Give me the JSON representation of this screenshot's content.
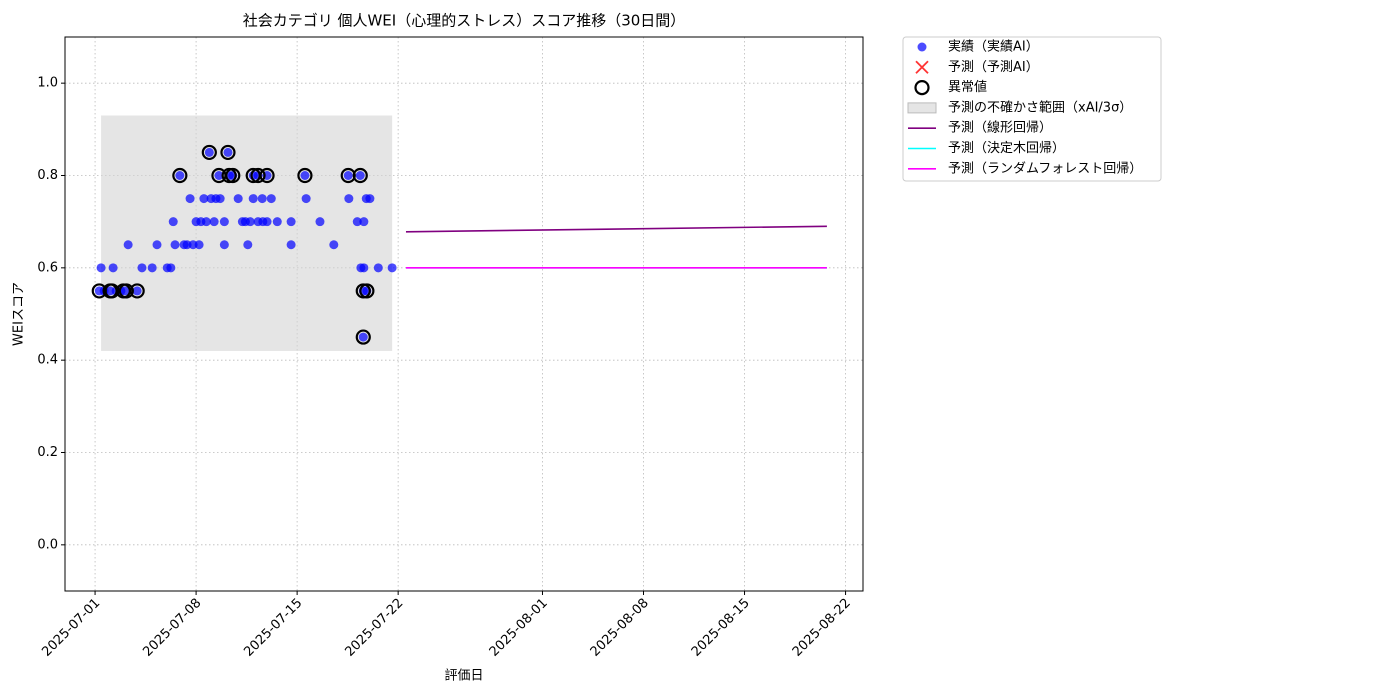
{
  "chart_data": {
    "type": "scatter",
    "title": "社会カテゴリ 個人WEI（心理的ストレス）スコア推移（30日間）",
    "xlabel": "評価日",
    "ylabel": "WEIスコア",
    "xlim": [
      "2025-06-28T22:00",
      "2025-08-23T05:00"
    ],
    "xticks": [
      "2025-07-01",
      "2025-07-08",
      "2025-07-15",
      "2025-07-22",
      "2025-08-01",
      "2025-08-08",
      "2025-08-15",
      "2025-08-22"
    ],
    "ylim": [
      -0.1,
      1.1
    ],
    "yticks": [
      {
        "value": 0,
        "label": "0.0"
      },
      0.2,
      0.4,
      0.6,
      0.8,
      {
        "value": 1,
        "label": "1.0"
      }
    ],
    "grid": true,
    "legend": "outside-upper-right",
    "series": [
      {
        "name": "実績（実績AI）",
        "kind": "scatter",
        "marker": "circle",
        "color": "#0000ff",
        "x": [
          "2025-07-01T07:00",
          "2025-07-01T10:00",
          "2025-07-01T15:00",
          "2025-07-02T01:00",
          "2025-07-02T06:00",
          "2025-07-02T11:00",
          "2025-07-02T19:00",
          "2025-07-03T02:00",
          "2025-07-03T07:00",
          "2025-07-03T22:00",
          "2025-07-04T06:00",
          "2025-07-04T23:00",
          "2025-07-05T07:00",
          "2025-07-06T00:00",
          "2025-07-06T06:00",
          "2025-07-06T10:00",
          "2025-07-06T13:00",
          "2025-07-06T21:00",
          "2025-07-07T04:00",
          "2025-07-07T09:00",
          "2025-07-07T14:00",
          "2025-07-07T19:00",
          "2025-07-08T00:00",
          "2025-07-08T05:00",
          "2025-07-08T08:00",
          "2025-07-08T13:00",
          "2025-07-08T17:00",
          "2025-07-08T22:00",
          "2025-07-09T01:00",
          "2025-07-09T06:00",
          "2025-07-09T09:00",
          "2025-07-09T14:00",
          "2025-07-09T16:00",
          "2025-07-09T23:00",
          "2025-07-09T23:00",
          "2025-07-10T05:00",
          "2025-07-10T07:00",
          "2025-07-10T13:00",
          "2025-07-10T22:00",
          "2025-07-11T05:00",
          "2025-07-11T10:00",
          "2025-07-11T14:00",
          "2025-07-11T18:00",
          "2025-07-11T23:00",
          "2025-07-11T23:00",
          "2025-07-12T07:00",
          "2025-07-12T07:00",
          "2025-07-12T14:00",
          "2025-07-12T15:00",
          "2025-07-12T22:00",
          "2025-07-12T22:00",
          "2025-07-13T05:00",
          "2025-07-13T15:00",
          "2025-07-14T14:00",
          "2025-07-14T14:00",
          "2025-07-15T13:00",
          "2025-07-15T15:00",
          "2025-07-16T14:00",
          "2025-07-17T13:00",
          "2025-07-18T13:00",
          "2025-07-18T14:00",
          "2025-07-19T04:00",
          "2025-07-19T09:00",
          "2025-07-19T10:00",
          "2025-07-19T14:00",
          "2025-07-19T14:00",
          "2025-07-19T15:00",
          "2025-07-19T15:00",
          "2025-07-19T19:00",
          "2025-07-19T20:00",
          "2025-07-20T01:00",
          "2025-07-20T15:00",
          "2025-07-21T14:00"
        ],
        "values": [
          0.55,
          0.6,
          0.55,
          0.55,
          0.6,
          0.55,
          0.55,
          0.55,
          0.65,
          0.55,
          0.6,
          0.6,
          0.65,
          0.6,
          0.6,
          0.7,
          0.65,
          0.8,
          0.65,
          0.65,
          0.75,
          0.65,
          0.7,
          0.65,
          0.7,
          0.75,
          0.7,
          0.85,
          0.75,
          0.7,
          0.75,
          0.8,
          0.75,
          0.65,
          0.7,
          0.85,
          0.8,
          0.8,
          0.75,
          0.7,
          0.7,
          0.65,
          0.7,
          0.8,
          0.75,
          0.7,
          0.8,
          0.75,
          0.7,
          0.7,
          0.8,
          0.75,
          0.7,
          0.7,
          0.65,
          0.8,
          0.75,
          0.7,
          0.65,
          0.8,
          0.75,
          0.7,
          0.8,
          0.6,
          0.55,
          0.45,
          0.7,
          0.6,
          0.75,
          0.55,
          0.75,
          0.6,
          0.6
        ]
      },
      {
        "name": "予測（予測AI）",
        "kind": "scatter",
        "marker": "x",
        "color": "#ff0000",
        "x": [],
        "values": []
      },
      {
        "name": "異常値",
        "kind": "scatter",
        "marker": "ring",
        "color": "#000000",
        "x": [
          "2025-07-01T07:00",
          "2025-07-02T01:00",
          "2025-07-02T04:00",
          "2025-07-02T23:00",
          "2025-07-03T04:00",
          "2025-07-03T22:00",
          "2025-07-06T21:00",
          "2025-07-08T22:00",
          "2025-07-09T14:00",
          "2025-07-10T05:00",
          "2025-07-10T07:00",
          "2025-07-10T13:00",
          "2025-07-11T23:00",
          "2025-07-12T07:00",
          "2025-07-12T22:00",
          "2025-07-15T13:00",
          "2025-07-18T13:00",
          "2025-07-19T09:00",
          "2025-07-19T14:00",
          "2025-07-19T20:00",
          "2025-07-19T14:00"
        ],
        "values": [
          0.55,
          0.55,
          0.55,
          0.55,
          0.55,
          0.55,
          0.8,
          0.85,
          0.8,
          0.85,
          0.8,
          0.8,
          0.8,
          0.8,
          0.8,
          0.8,
          0.8,
          0.8,
          0.55,
          0.55,
          0.45
        ]
      },
      {
        "name": "予測の不確かさ範囲（xAI/3σ）",
        "kind": "band",
        "color": "#d3d3d3",
        "x": [
          "2025-07-01T10:00",
          "2025-07-21T14:00"
        ],
        "values": [
          0.42,
          0.93
        ]
      },
      {
        "name": "予測（線形回帰）",
        "kind": "line",
        "color": "#800080",
        "x": [
          "2025-07-22T13:00",
          "2025-08-20T17:00"
        ],
        "values": [
          0.678,
          0.69
        ]
      },
      {
        "name": "予測（決定木回帰）",
        "kind": "line",
        "color": "#00ffff",
        "x": [
          "2025-07-22T13:00",
          "2025-08-20T17:00"
        ],
        "values": [
          0.6,
          0.6
        ]
      },
      {
        "name": "予測（ランダムフォレスト回帰）",
        "kind": "line",
        "color": "#ff00ff",
        "x": [
          "2025-07-22T13:00",
          "2025-08-20T17:00"
        ],
        "values": [
          0.6,
          0.6
        ]
      }
    ]
  }
}
